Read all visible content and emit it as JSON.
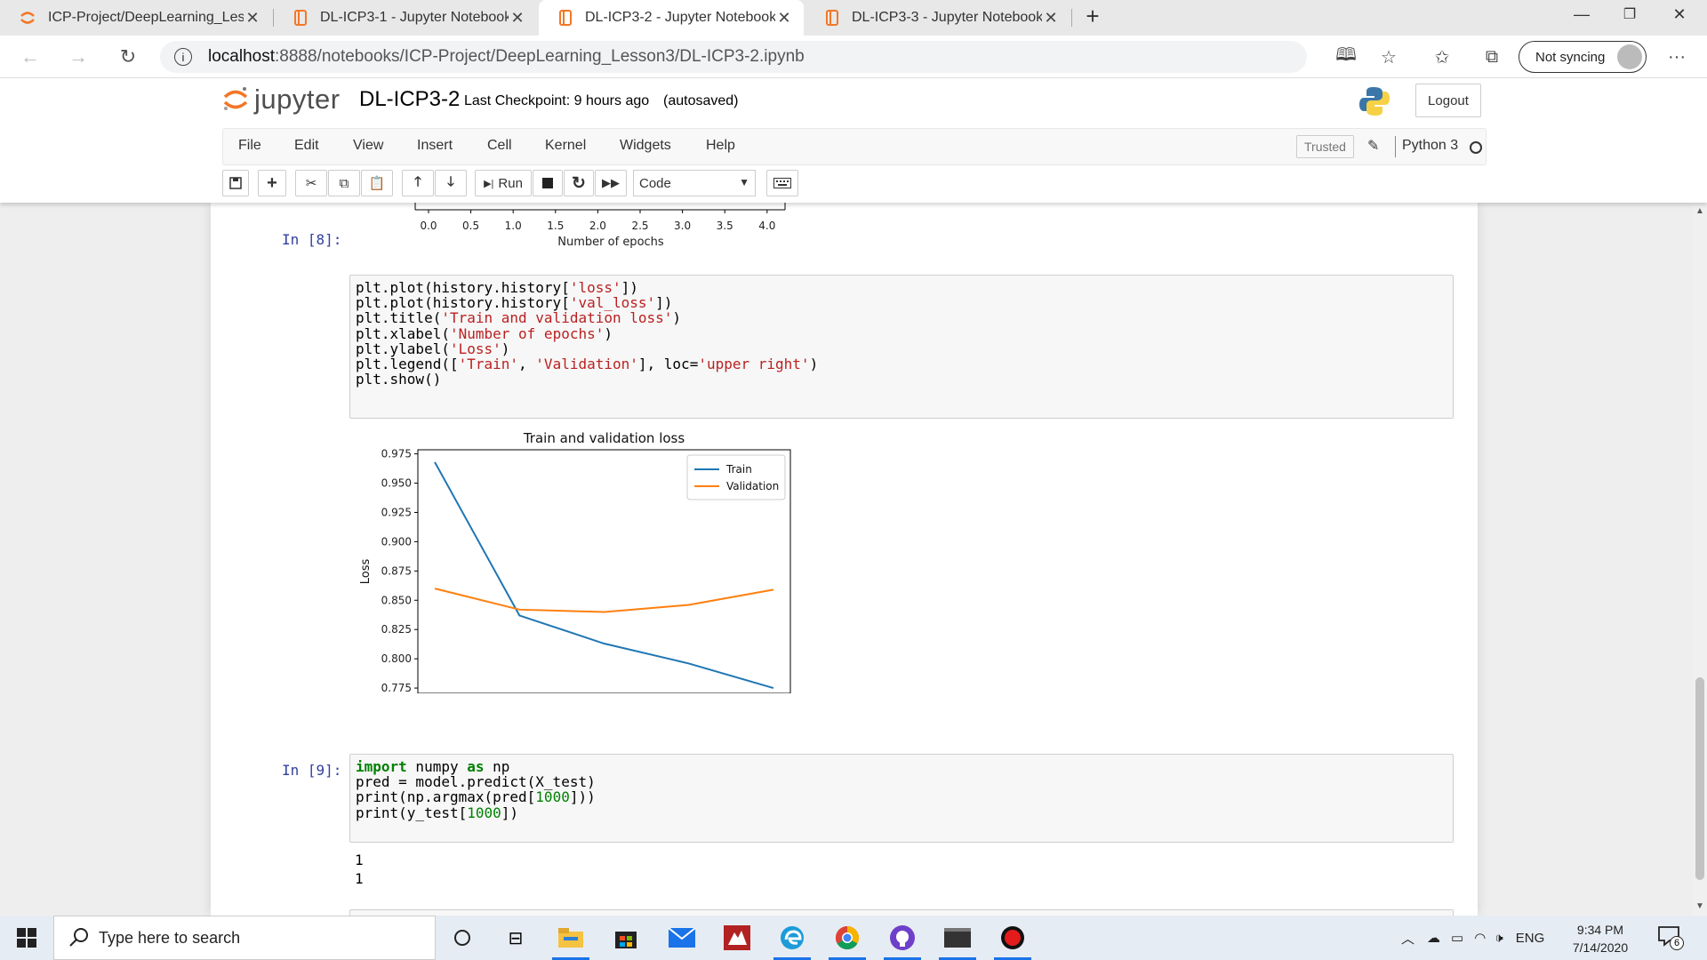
{
  "browser": {
    "tabs": [
      {
        "title": "ICP-Project/DeepLearning_Lesso",
        "active": false
      },
      {
        "title": "DL-ICP3-1 - Jupyter Notebook",
        "active": false
      },
      {
        "title": "DL-ICP3-2 - Jupyter Notebook",
        "active": true
      },
      {
        "title": "DL-ICP3-3 - Jupyter Notebook",
        "active": false
      }
    ],
    "url_host": "localhost",
    "url_path": ":8888/notebooks/ICP-Project/DeepLearning_Lesson3/DL-ICP3-2.ipynb",
    "sync_label": "Not syncing"
  },
  "jupyter": {
    "logo_text": "jupyter",
    "notebook_name": "DL-ICP3-2",
    "checkpoint": "Last Checkpoint: 9 hours ago",
    "autosave": "(autosaved)",
    "logout_label": "Logout",
    "menus": [
      "File",
      "Edit",
      "View",
      "Insert",
      "Cell",
      "Kernel",
      "Widgets",
      "Help"
    ],
    "trusted_label": "Trusted",
    "kernel_name": "Python 3",
    "run_label": "Run",
    "cell_type": "Code"
  },
  "prev_chart_axis": {
    "ticks": [
      "0.0",
      "0.5",
      "1.0",
      "1.5",
      "2.0",
      "2.5",
      "3.0",
      "3.5",
      "4.0"
    ],
    "xlabel": "Number of epochs"
  },
  "cells": {
    "cell8": {
      "prompt": "In [8]:",
      "lines": [
        [
          {
            "t": "plt.plot(history.history["
          },
          {
            "t": "'loss'",
            "c": "str"
          },
          {
            "t": "])"
          }
        ],
        [
          {
            "t": "plt.plot(history.history["
          },
          {
            "t": "'val_loss'",
            "c": "str"
          },
          {
            "t": "])"
          }
        ],
        [
          {
            "t": "plt.title("
          },
          {
            "t": "'Train and validation loss'",
            "c": "str"
          },
          {
            "t": ")"
          }
        ],
        [
          {
            "t": "plt.xlabel("
          },
          {
            "t": "'Number of epochs'",
            "c": "str"
          },
          {
            "t": ")"
          }
        ],
        [
          {
            "t": "plt.ylabel("
          },
          {
            "t": "'Loss'",
            "c": "str"
          },
          {
            "t": ")"
          }
        ],
        [
          {
            "t": "plt.legend(["
          },
          {
            "t": "'Train'",
            "c": "str"
          },
          {
            "t": ", "
          },
          {
            "t": "'Validation'",
            "c": "str"
          },
          {
            "t": "], loc="
          },
          {
            "t": "'upper right'",
            "c": "str"
          },
          {
            "t": ")"
          }
        ],
        [
          {
            "t": "plt.show()"
          }
        ]
      ]
    },
    "cell9": {
      "prompt": "In [9]:",
      "lines": [
        [
          {
            "t": "import",
            "c": "kw"
          },
          {
            "t": " numpy "
          },
          {
            "t": "as",
            "c": "kw"
          },
          {
            "t": " np"
          }
        ],
        [
          {
            "t": "pred = model.predict(X_test)"
          }
        ],
        [
          {
            "t": "print(np.argmax(pred["
          },
          {
            "t": "1000",
            "c": "num"
          },
          {
            "t": "]))"
          }
        ],
        [
          {
            "t": "print(y_test["
          },
          {
            "t": "1000",
            "c": "num"
          },
          {
            "t": "])"
          }
        ]
      ],
      "output": [
        "1",
        "1"
      ]
    }
  },
  "chart_data": {
    "type": "line",
    "title": "Train and validation loss",
    "xlabel": "Number of epochs",
    "ylabel": "Loss",
    "x": [
      0,
      1,
      2,
      3,
      4
    ],
    "series": [
      {
        "name": "Train",
        "values": [
          0.968,
          0.837,
          0.813,
          0.796,
          0.775
        ],
        "color": "#1f77b4"
      },
      {
        "name": "Validation",
        "values": [
          0.86,
          0.842,
          0.84,
          0.846,
          0.859
        ],
        "color": "#ff7f0e"
      }
    ],
    "xlim": [
      -0.2,
      4.2
    ],
    "ylim": [
      0.7705,
      0.9785
    ],
    "xticks": [
      "0.0",
      "0.5",
      "1.0",
      "1.5",
      "2.0",
      "2.5",
      "3.0",
      "3.5",
      "4.0"
    ],
    "yticks": [
      "0.775",
      "0.800",
      "0.825",
      "0.850",
      "0.875",
      "0.900",
      "0.925",
      "0.950",
      "0.975"
    ],
    "legend": "upper right",
    "grid": false
  },
  "taskbar": {
    "search_placeholder": "Type here to search",
    "language": "ENG",
    "time": "9:34 PM",
    "date": "7/14/2020",
    "notification_count": "6"
  }
}
